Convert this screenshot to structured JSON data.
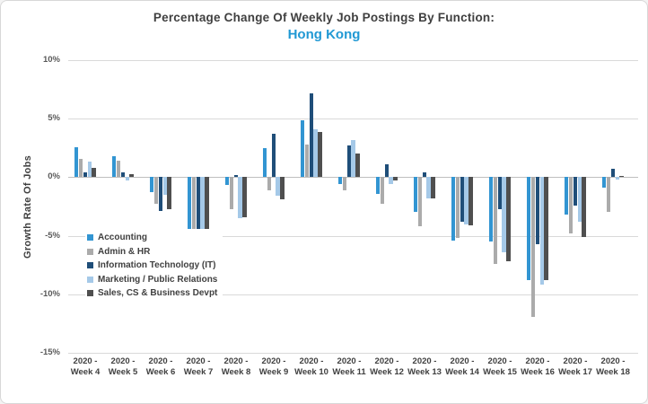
{
  "window": {
    "bg": "#ffffff",
    "border_color": "#d8d8d8"
  },
  "title": {
    "line1": "Percentage Change Of Weekly Job Postings By Function:",
    "line2": "Hong Kong",
    "line1_color": "#404040",
    "line2_color": "#2199d4"
  },
  "chart_data": {
    "type": "bar",
    "title": "Percentage Change Of Weekly Job Postings By Function: Hong Kong",
    "xlabel": "",
    "ylabel": "Growth Rate Of Jobs",
    "ylim": [
      -15,
      10
    ],
    "yticks": [
      10,
      5,
      0,
      -5,
      -10,
      -15
    ],
    "ytick_labels": [
      "10%",
      "5%",
      "0%",
      "-5%",
      "-10%",
      "-15%"
    ],
    "grid": true,
    "legend_position": "inside-left",
    "year_prefix": "2020 -",
    "categories": [
      "Week 4",
      "Week 5",
      "Week 6",
      "Week 7",
      "Week 8",
      "Week 9",
      "Week 10",
      "Week 11",
      "Week 12",
      "Week 13",
      "Week 14",
      "Week 15",
      "Week 16",
      "Week 17",
      "Week 18"
    ],
    "series": [
      {
        "name": "Accounting",
        "color": "#3295d2",
        "values": [
          2.6,
          1.8,
          -1.3,
          -4.9,
          -0.7,
          2.5,
          4.9,
          -0.6,
          -1.4,
          -3.0,
          -5.4,
          -5.5,
          -8.8,
          -3.2,
          -0.9
        ]
      },
      {
        "name": "Admin & HR",
        "color": "#ababab",
        "values": [
          1.6,
          1.4,
          -2.3,
          -4.7,
          -2.7,
          -1.1,
          2.8,
          -1.1,
          -2.3,
          -4.2,
          -5.2,
          -7.4,
          -11.9,
          -4.8,
          -3.0
        ]
      },
      {
        "name": "Information Technology (IT)",
        "color": "#1f4e79",
        "values": [
          0.4,
          0.4,
          -2.9,
          -4.9,
          0.2,
          3.7,
          7.2,
          2.7,
          1.1,
          0.4,
          -3.8,
          -2.7,
          -5.7,
          -2.4,
          0.7
        ]
      },
      {
        "name": "Marketing / Public Relations",
        "color": "#a5c9e8",
        "values": [
          1.3,
          -0.3,
          -1.5,
          -5.0,
          -3.5,
          -1.6,
          4.1,
          3.2,
          -0.6,
          -1.8,
          -4.0,
          -6.4,
          -9.2,
          -3.8,
          -0.2
        ]
      },
      {
        "name": "Sales, CS & Business Devpt",
        "color": "#4f4f4f",
        "values": [
          0.8,
          0.3,
          -2.7,
          -5.1,
          -3.4,
          -1.9,
          3.9,
          2.0,
          -0.3,
          -1.8,
          -4.1,
          -7.2,
          -8.8,
          -5.1,
          0.1
        ]
      }
    ]
  }
}
